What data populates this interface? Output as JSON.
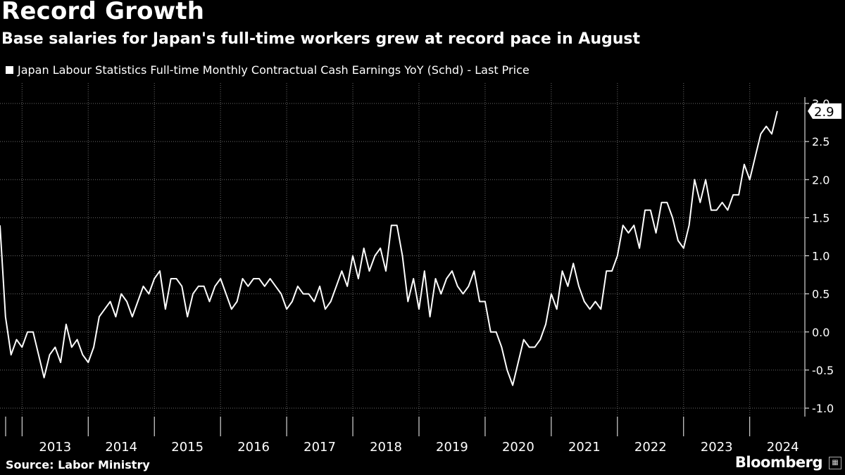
{
  "header": {
    "title": "Record Growth",
    "subtitle": "Base salaries for Japan's full-time workers grew at record pace in August"
  },
  "legend": {
    "label": "Japan Labour Statistics Full-time Monthly Contractual Cash Earnings YoY (Schd) - Last Price"
  },
  "footer": {
    "source": "Source: Labor Ministry",
    "brand": "Bloomberg"
  },
  "colors": {
    "background": "#000000",
    "line": "#ffffff",
    "grid": "#6a6a6a"
  },
  "chart_data": {
    "type": "line",
    "series": [
      {
        "name": "Japan Labour Statistics Full-time Monthly Contractual Cash Earnings YoY (Schd) - Last Price",
        "start": "2012-09",
        "frequency": "monthly",
        "values": [
          1.4,
          0.2,
          -0.3,
          -0.1,
          -0.2,
          0.0,
          0.0,
          -0.3,
          -0.6,
          -0.3,
          -0.2,
          -0.4,
          0.1,
          -0.2,
          -0.1,
          -0.3,
          -0.4,
          -0.2,
          0.2,
          0.3,
          0.4,
          0.2,
          0.5,
          0.4,
          0.2,
          0.4,
          0.6,
          0.5,
          0.7,
          0.8,
          0.3,
          0.7,
          0.7,
          0.6,
          0.2,
          0.5,
          0.6,
          0.6,
          0.4,
          0.6,
          0.7,
          0.5,
          0.3,
          0.4,
          0.7,
          0.6,
          0.7,
          0.7,
          0.6,
          0.7,
          0.6,
          0.5,
          0.3,
          0.4,
          0.6,
          0.5,
          0.5,
          0.4,
          0.6,
          0.3,
          0.4,
          0.6,
          0.8,
          0.6,
          1.0,
          0.7,
          1.1,
          0.8,
          1.0,
          1.1,
          0.8,
          1.4,
          1.4,
          1.0,
          0.4,
          0.7,
          0.3,
          0.8,
          0.2,
          0.7,
          0.5,
          0.7,
          0.8,
          0.6,
          0.5,
          0.6,
          0.8,
          0.4,
          0.4,
          0.0,
          0.0,
          -0.2,
          -0.5,
          -0.7,
          -0.4,
          -0.1,
          -0.2,
          -0.2,
          -0.1,
          0.1,
          0.5,
          0.3,
          0.8,
          0.6,
          0.9,
          0.6,
          0.4,
          0.3,
          0.4,
          0.3,
          0.8,
          0.8,
          1.0,
          1.4,
          1.3,
          1.4,
          1.1,
          1.6,
          1.6,
          1.3,
          1.7,
          1.7,
          1.5,
          1.2,
          1.1,
          1.4,
          2.0,
          1.7,
          2.0,
          1.6,
          1.6,
          1.7,
          1.6,
          1.8,
          1.8,
          2.2,
          2.0,
          2.3,
          2.6,
          2.7,
          2.6,
          2.9
        ]
      }
    ],
    "last_value_label": "2.9",
    "x_tick_labels": [
      "2013",
      "2014",
      "2015",
      "2016",
      "2017",
      "2018",
      "2019",
      "2020",
      "2021",
      "2022",
      "2023",
      "2024"
    ],
    "y_tick_labels": [
      "3.0",
      "2.5",
      "2.0",
      "1.5",
      "1.0",
      "0.5",
      "0.0",
      "-0.5",
      "-1.0"
    ],
    "ylim": [
      -1.0,
      3.0
    ],
    "xlim": [
      "2012-09",
      "2024-11"
    ],
    "y_axis_side": "right",
    "grid": true,
    "legend_position": "top-left"
  }
}
